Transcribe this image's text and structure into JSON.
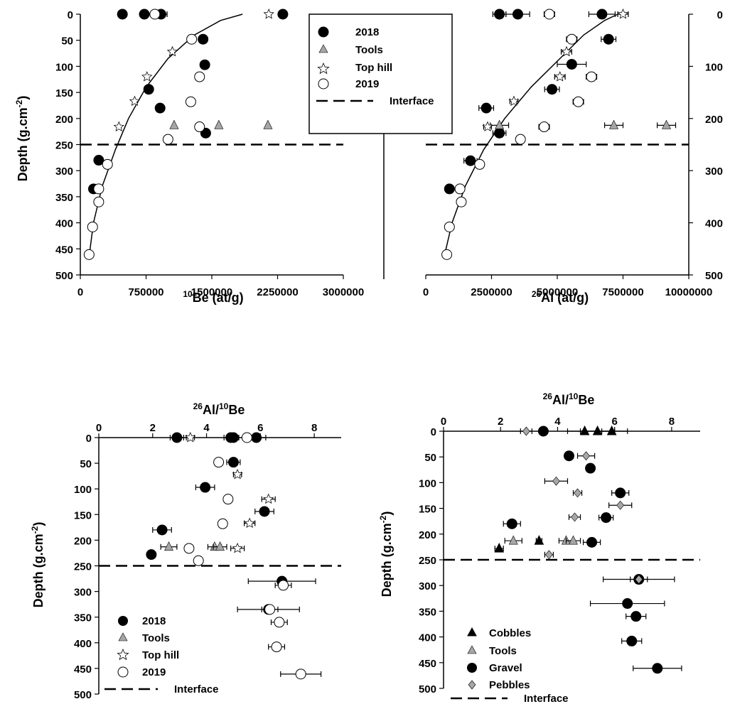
{
  "chart_data": [
    {
      "type": "scatter",
      "id": "be10",
      "xlabel_sup": "10",
      "xlabel_main": "Be (at/g)",
      "ylabel_main": "Depth (g.cm",
      "ylabel_sup": "-2",
      "ylabel_end": ")",
      "xlim": [
        0,
        3000000
      ],
      "ylim": [
        0,
        500
      ],
      "xticks": [
        "0",
        "750000",
        "1500000",
        "2250000",
        "3000000"
      ],
      "xtick_values": [
        0,
        750000,
        1500000,
        2250000,
        3000000
      ],
      "yticks": [
        "0",
        "50",
        "100",
        "150",
        "200",
        "250",
        "300",
        "350",
        "400",
        "450",
        "500"
      ],
      "ytick_values": [
        0,
        50,
        100,
        150,
        200,
        250,
        300,
        350,
        400,
        450,
        500
      ],
      "interface_depth": 250,
      "legend": [
        "2018",
        "Tools",
        "Top hill",
        "2019",
        "Interface"
      ],
      "curve": [
        [
          100000,
          465
        ],
        [
          150000,
          400
        ],
        [
          250000,
          330
        ],
        [
          400000,
          260
        ],
        [
          550000,
          200
        ],
        [
          750000,
          140
        ],
        [
          1000000,
          85
        ],
        [
          1300000,
          40
        ],
        [
          1600000,
          12
        ],
        [
          1850000,
          0
        ]
      ],
      "series": [
        {
          "name": "2018",
          "marker": "filled",
          "points": [
            [
              480000,
              0,
              0
            ],
            [
              730000,
              0,
              0
            ],
            [
              920000,
              0,
              70000
            ],
            [
              2310000,
              0,
              0
            ],
            [
              1400000,
              48,
              0
            ],
            [
              1420000,
              97,
              0
            ],
            [
              780000,
              144,
              0
            ],
            [
              910000,
              180,
              0
            ],
            [
              1430000,
              228,
              0
            ],
            [
              210000,
              280,
              0
            ],
            [
              150000,
              335,
              0
            ]
          ]
        },
        {
          "name": "Tools",
          "marker": "triangle",
          "points": [
            [
              1070000,
              213,
              0
            ],
            [
              1580000,
              213,
              0
            ],
            [
              2140000,
              213,
              0
            ]
          ]
        },
        {
          "name": "Top hill",
          "marker": "star",
          "points": [
            [
              2150000,
              0,
              0
            ],
            [
              1050000,
              72,
              0
            ],
            [
              760000,
              120,
              0
            ],
            [
              620000,
              167,
              0
            ],
            [
              440000,
              216,
              0
            ]
          ]
        },
        {
          "name": "2019",
          "marker": "open",
          "points": [
            [
              850000,
              0,
              0
            ],
            [
              1270000,
              48,
              0
            ],
            [
              1360000,
              120,
              0
            ],
            [
              1260000,
              168,
              0
            ],
            [
              1360000,
              216,
              0
            ],
            [
              1000000,
              240,
              0
            ],
            [
              310000,
              288,
              0
            ],
            [
              210000,
              335,
              0
            ],
            [
              210000,
              360,
              0
            ],
            [
              140000,
              408,
              0
            ],
            [
              100000,
              461,
              0
            ]
          ]
        }
      ]
    },
    {
      "type": "scatter",
      "id": "al26",
      "xlabel_sup": "26",
      "xlabel_main": "Al (at/g)",
      "xlim": [
        0,
        10000000
      ],
      "ylim": [
        0,
        500
      ],
      "xticks": [
        "0",
        "2500000",
        "5000000",
        "7500000",
        "10000000"
      ],
      "xtick_values": [
        0,
        2500000,
        5000000,
        7500000,
        10000000
      ],
      "yticks": [
        "0",
        "100",
        "200",
        "300",
        "400",
        "500"
      ],
      "ytick_values": [
        0,
        100,
        200,
        300,
        400,
        500
      ],
      "interface_depth": 250,
      "curve": [
        [
          700000,
          465
        ],
        [
          1000000,
          400
        ],
        [
          1500000,
          330
        ],
        [
          2200000,
          260
        ],
        [
          3000000,
          200
        ],
        [
          4000000,
          140
        ],
        [
          5000000,
          90
        ],
        [
          6000000,
          40
        ],
        [
          6800000,
          12
        ],
        [
          7300000,
          0
        ]
      ],
      "series": [
        {
          "name": "2018",
          "marker": "filled",
          "points": [
            [
              2800000,
              0,
              250000
            ],
            [
              3500000,
              0,
              450000
            ],
            [
              6700000,
              0,
              500000
            ],
            [
              6950000,
              48,
              280000
            ],
            [
              5550000,
              96,
              550000
            ],
            [
              4800000,
              144,
              280000
            ],
            [
              2300000,
              180,
              280000
            ],
            [
              2800000,
              228,
              250000
            ],
            [
              1700000,
              281,
              250000
            ],
            [
              900000,
              335,
              150000
            ]
          ]
        },
        {
          "name": "Tools",
          "marker": "triangle",
          "points": [
            [
              2800000,
              213,
              350000
            ],
            [
              7150000,
              213,
              350000
            ],
            [
              9150000,
              213,
              350000
            ]
          ]
        },
        {
          "name": "Top hill",
          "marker": "star",
          "points": [
            [
              7500000,
              0,
              200000
            ],
            [
              5350000,
              72,
              200000
            ],
            [
              5100000,
              120,
              200000
            ],
            [
              3350000,
              167,
              150000
            ],
            [
              2350000,
              216,
              150000
            ]
          ]
        },
        {
          "name": "2019",
          "marker": "open",
          "points": [
            [
              4700000,
              0,
              200000
            ],
            [
              5550000,
              48,
              200000
            ],
            [
              6300000,
              120,
              200000
            ],
            [
              5800000,
              168,
              200000
            ],
            [
              4500000,
              216,
              200000
            ],
            [
              3600000,
              240,
              0
            ],
            [
              2050000,
              288,
              0
            ],
            [
              1300000,
              335,
              0
            ],
            [
              1350000,
              360,
              0
            ],
            [
              900000,
              408,
              0
            ],
            [
              800000,
              461,
              0
            ]
          ]
        }
      ]
    },
    {
      "type": "scatter",
      "id": "ratio1",
      "xlabel_top_a": "26",
      "xlabel_top_b": "Al/",
      "xlabel_top_c": "10",
      "xlabel_top_d": "Be",
      "xlim": [
        0,
        9
      ],
      "ylim": [
        0,
        500
      ],
      "xticks": [
        "0",
        "2",
        "4",
        "6",
        "8"
      ],
      "xtick_values": [
        0,
        2,
        4,
        6,
        8
      ],
      "interface_depth": 250,
      "legend": [
        "2018",
        "Tools",
        "Top hill",
        "2019",
        "Interface"
      ],
      "series": [
        {
          "name": "2018",
          "marker": "filled",
          "points": [
            [
              2.9,
              0,
              0.25
            ],
            [
              4.9,
              0,
              0.25
            ],
            [
              5.0,
              0,
              0.2
            ],
            [
              5.85,
              0,
              0.35
            ],
            [
              5.0,
              48,
              0.25
            ],
            [
              3.95,
              97,
              0.35
            ],
            [
              6.15,
              144,
              0.35
            ],
            [
              2.35,
              180,
              0.35
            ],
            [
              1.95,
              228,
              0.12
            ],
            [
              6.8,
              280,
              1.25
            ],
            [
              6.3,
              335,
              1.15
            ]
          ]
        },
        {
          "name": "Tools",
          "marker": "triangle",
          "points": [
            [
              2.6,
              213,
              0.3
            ],
            [
              4.3,
              213,
              0.25
            ],
            [
              4.5,
              213,
              0.25
            ]
          ]
        },
        {
          "name": "Top hill",
          "marker": "star",
          "points": [
            [
              3.4,
              0,
              0.15
            ],
            [
              5.15,
              72,
              0.15
            ],
            [
              6.3,
              120,
              0.25
            ],
            [
              5.6,
              167,
              0.2
            ],
            [
              5.15,
              216,
              0.25
            ]
          ]
        },
        {
          "name": "2019",
          "marker": "open",
          "points": [
            [
              5.5,
              0,
              0.15
            ],
            [
              4.45,
              48,
              0.15
            ],
            [
              4.8,
              120,
              0.12
            ],
            [
              4.6,
              168,
              0.12
            ],
            [
              3.35,
              216,
              0.12
            ],
            [
              3.7,
              240,
              0.15
            ],
            [
              6.85,
              288,
              0.3
            ],
            [
              6.35,
              335,
              0.3
            ],
            [
              6.7,
              360,
              0.3
            ],
            [
              6.6,
              408,
              0.3
            ],
            [
              7.5,
              461,
              0.75
            ]
          ]
        }
      ]
    },
    {
      "type": "scatter",
      "id": "ratio2",
      "xlabel_top_a": "26",
      "xlabel_top_b": "Al/",
      "xlabel_top_c": "10",
      "xlabel_top_d": "Be",
      "xlim": [
        0,
        9
      ],
      "ylim": [
        0,
        500
      ],
      "xticks": [
        "0",
        "2",
        "4",
        "6",
        "8"
      ],
      "xtick_values": [
        0,
        2,
        4,
        6,
        8
      ],
      "interface_depth": 250,
      "legend": [
        "Cobbles",
        "Tools",
        "Gravel",
        "Pebbles",
        "Interface"
      ],
      "series": [
        {
          "name": "Cobbles",
          "marker": "filled-triangle",
          "points": [
            [
              4.95,
              0,
              0.6
            ],
            [
              5.4,
              0,
              0.6
            ],
            [
              5.9,
              0,
              0.55
            ],
            [
              3.35,
              213,
              0.1
            ],
            [
              1.95,
              228,
              0.15
            ]
          ]
        },
        {
          "name": "Tools",
          "marker": "triangle",
          "points": [
            [
              2.45,
              213,
              0.3
            ],
            [
              4.3,
              213,
              0.25
            ],
            [
              4.55,
              213,
              0.25
            ]
          ]
        },
        {
          "name": "Gravel",
          "marker": "filled",
          "points": [
            [
              3.5,
              0,
              0
            ],
            [
              4.4,
              48,
              0.15
            ],
            [
              5.15,
              72,
              0.12
            ],
            [
              6.2,
              120,
              0.3
            ],
            [
              5.7,
              168,
              0.25
            ],
            [
              2.4,
              180,
              0.3
            ],
            [
              5.2,
              216,
              0.3
            ],
            [
              6.85,
              288,
              1.25
            ],
            [
              6.45,
              335,
              1.3
            ],
            [
              6.75,
              360,
              0.35
            ],
            [
              6.6,
              408,
              0.35
            ],
            [
              7.5,
              461,
              0.85
            ]
          ]
        },
        {
          "name": "Pebbles",
          "marker": "diamond",
          "points": [
            [
              2.9,
              0,
              0.2
            ],
            [
              5.0,
              48,
              0.3
            ],
            [
              3.95,
              97,
              0.4
            ],
            [
              4.7,
              120,
              0.15
            ],
            [
              6.2,
              144,
              0.4
            ],
            [
              4.6,
              167,
              0.2
            ],
            [
              3.7,
              240,
              0.15
            ],
            [
              6.85,
              288,
              0.3
            ]
          ]
        }
      ]
    }
  ]
}
